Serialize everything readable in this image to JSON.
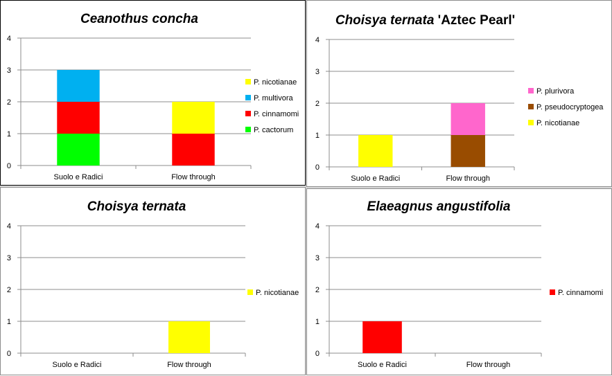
{
  "chart_data": [
    {
      "type": "bar",
      "stacked": true,
      "title_italic": "Ceanothus concha",
      "title_suffix": "",
      "categories": [
        "Suolo e Radici",
        "Flow through"
      ],
      "ylim": [
        0,
        4
      ],
      "yticks": [
        "0",
        "1",
        "2",
        "3",
        "4"
      ],
      "grid": true,
      "series": [
        {
          "name": "P. cactorum",
          "color": "#00ff00",
          "values": [
            1,
            0
          ]
        },
        {
          "name": "P. cinnamomi",
          "color": "#ff0000",
          "values": [
            1,
            1
          ]
        },
        {
          "name": "P. multivora",
          "color": "#00b0f0",
          "values": [
            1,
            0
          ]
        },
        {
          "name": "P. nicotianae",
          "color": "#ffff00",
          "values": [
            0,
            1
          ]
        }
      ],
      "legend_order": [
        "P. nicotianae",
        "P. multivora",
        "P. cinnamomi",
        "P. cactorum"
      ]
    },
    {
      "type": "bar",
      "stacked": true,
      "title_italic": "Choisya ternata",
      "title_suffix": " 'Aztec Pearl'",
      "categories": [
        "Suolo e Radici",
        "Flow through"
      ],
      "ylim": [
        0,
        4
      ],
      "yticks": [
        "0",
        "1",
        "2",
        "3",
        "4"
      ],
      "grid": true,
      "series": [
        {
          "name": "P. nicotianae",
          "color": "#ffff00",
          "values": [
            1,
            0
          ]
        },
        {
          "name": "P. pseudocryptogea",
          "color": "#994c00",
          "values": [
            0,
            1
          ]
        },
        {
          "name": "P. plurivora",
          "color": "#ff66cc",
          "values": [
            0,
            1
          ]
        }
      ],
      "legend_order": [
        "P. plurivora",
        "P. pseudocryptogea",
        "P. nicotianae"
      ]
    },
    {
      "type": "bar",
      "stacked": true,
      "title_italic": "Choisya ternata",
      "title_suffix": "",
      "categories": [
        "Suolo e Radici",
        "Flow through"
      ],
      "ylim": [
        0,
        4
      ],
      "yticks": [
        "0",
        "1",
        "2",
        "3",
        "4"
      ],
      "grid": true,
      "series": [
        {
          "name": "P. nicotianae",
          "color": "#ffff00",
          "values": [
            0,
            1
          ]
        }
      ],
      "legend_order": [
        "P. nicotianae"
      ]
    },
    {
      "type": "bar",
      "stacked": true,
      "title_italic": "Elaeagnus angustifolia",
      "title_suffix": "",
      "categories": [
        "Suolo e Radici",
        "Flow through"
      ],
      "ylim": [
        0,
        4
      ],
      "yticks": [
        "0",
        "1",
        "2",
        "3",
        "4"
      ],
      "grid": true,
      "series": [
        {
          "name": "P. cinnamomi",
          "color": "#ff0000",
          "values": [
            1,
            0
          ]
        }
      ],
      "legend_order": [
        "P. cinnamomi"
      ]
    }
  ]
}
